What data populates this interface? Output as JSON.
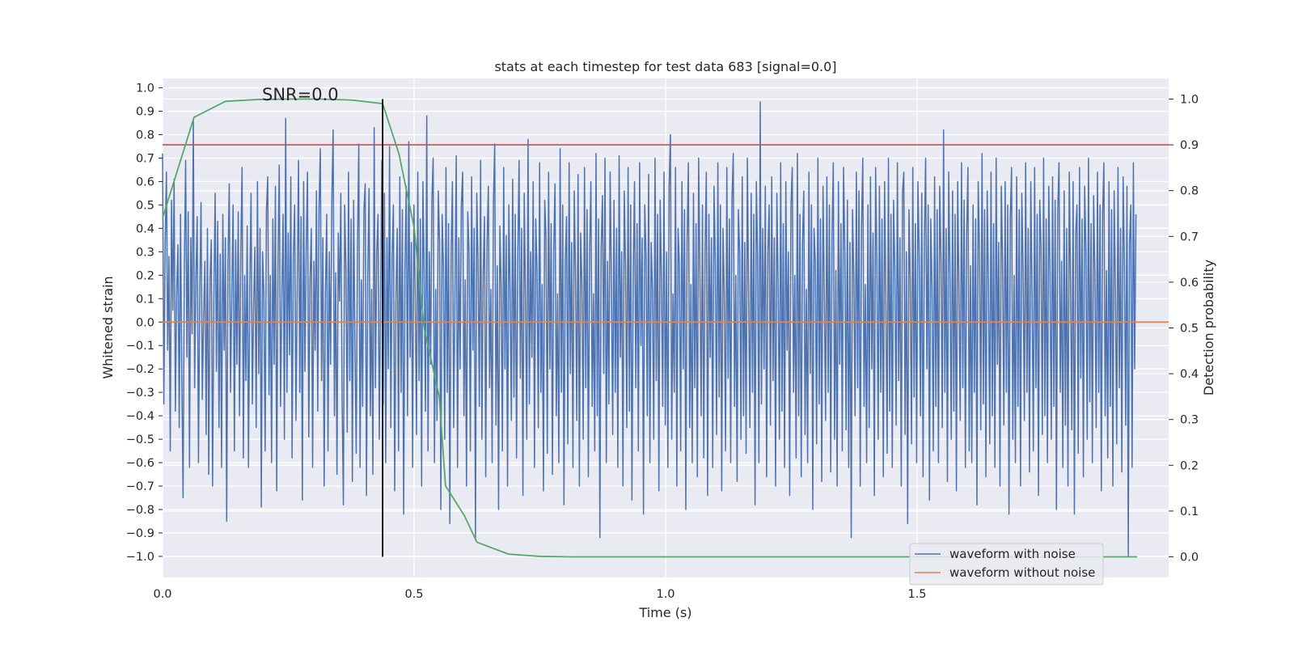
{
  "chart_data": {
    "type": "line",
    "title": "stats at each timestep for test data 683 [signal=0.0]",
    "xlabel": "Time (s)",
    "ylabel": "Whitened strain",
    "y2label": "Detection probability",
    "xlim": [
      0.0,
      2.0
    ],
    "ylim": [
      -1.09,
      1.04
    ],
    "y2lim": [
      -0.045,
      1.045
    ],
    "x_ticks": [
      0.0,
      0.5,
      1.0,
      1.5
    ],
    "x_tick_labels": [
      "0.0",
      "0.5",
      "1.0",
      "1.5"
    ],
    "y_ticks": [
      1.0,
      0.9,
      0.8,
      0.7,
      0.6,
      0.5,
      0.4,
      0.3,
      0.2,
      0.1,
      0.0,
      -0.1,
      -0.2,
      -0.3,
      -0.4,
      -0.5,
      -0.6,
      -0.7,
      -0.8,
      -0.9,
      -1.0
    ],
    "y_tick_labels": [
      "1.0",
      "0.9",
      "0.8",
      "0.7",
      "0.6",
      "0.5",
      "0.4",
      "0.3",
      "0.2",
      "0.1",
      "0.0",
      "−0.1",
      "−0.2",
      "−0.3",
      "−0.4",
      "−0.5",
      "−0.6",
      "−0.7",
      "−0.8",
      "−0.9",
      "−1.0"
    ],
    "y2_ticks": [
      1.0,
      0.9,
      0.8,
      0.7,
      0.6,
      0.5,
      0.4,
      0.3,
      0.2,
      0.1,
      0.0
    ],
    "y2_tick_labels": [
      "1.0",
      "0.9",
      "0.8",
      "0.7",
      "0.6",
      "0.5",
      "0.4",
      "0.3",
      "0.2",
      "0.1",
      "0.0"
    ],
    "grid": true,
    "legend_position": "lower-right",
    "annotation": "SNR=0.0",
    "series": [
      {
        "name": "waveform with noise",
        "axis": "left",
        "color": "#4c72b0",
        "x_start": 0.0,
        "x_end": 1.935,
        "values": [
          0.72,
          -0.35,
          0.33,
          0.64,
          -0.12,
          0.28,
          -0.55,
          0.52,
          0.05,
          0.61,
          -0.38,
          0.12,
          0.33,
          -0.45,
          0.46,
          -0.22,
          -0.75,
          0.24,
          0.69,
          -0.15,
          0.47,
          -0.62,
          0.36,
          -0.05,
          0.86,
          -0.28,
          0.18,
          0.45,
          -0.6,
          0.12,
          0.51,
          -0.33,
          0.02,
          0.26,
          -0.48,
          0.4,
          -0.65,
          0.18,
          0.35,
          -0.7,
          0.09,
          0.55,
          -0.21,
          0.43,
          -0.45,
          0.29,
          -0.62,
          0.46,
          -0.12,
          0.36,
          -0.85,
          0.25,
          0.59,
          -0.3,
          0.12,
          0.5,
          -0.55,
          0.35,
          -0.18,
          0.47,
          -0.4,
          0.3,
          0.66,
          -0.58,
          0.2,
          -0.25,
          0.41,
          -0.62,
          0.14,
          0.55,
          -0.35,
          0.07,
          0.32,
          -0.45,
          0.6,
          -0.22,
          0.4,
          -0.79,
          0.3,
          0.12,
          -0.55,
          0.48,
          0.62,
          -0.31,
          0.2,
          -0.6,
          0.44,
          -0.18,
          0.58,
          -0.72,
          0.25,
          0.67,
          -0.36,
          0.1,
          0.46,
          -0.5,
          0.87,
          -0.3,
          0.38,
          -0.14,
          0.62,
          -0.58,
          0.28,
          0.5,
          -0.42,
          0.14,
          0.69,
          -0.3,
          0.45,
          -0.76,
          0.6,
          -0.21,
          0.31,
          0.64,
          -0.49,
          0.18,
          0.4,
          -0.62,
          0.26,
          -0.12,
          0.56,
          -0.38,
          0.48,
          0.74,
          -0.25,
          0.36,
          -0.7,
          0.12,
          0.46,
          -0.55,
          0.3,
          -0.18,
          0.52,
          0.82,
          -0.4,
          0.21,
          -0.65,
          0.38,
          0.09,
          0.55,
          -0.33,
          -0.78,
          0.5,
          0.22,
          -0.47,
          0.64,
          -0.25,
          0.44,
          -0.68,
          0.52,
          -0.1,
          -0.56,
          0.33,
          0.76,
          -0.62,
          0.18,
          -0.36,
          0.48,
          0.59,
          -0.74,
          0.2,
          0.57,
          -0.4,
          0.14,
          -0.65,
          0.83,
          -0.28,
          0.3,
          0.46,
          -0.5,
          0.12,
          0.69,
          -0.35,
          0.55,
          -0.6,
          0.36,
          -0.2,
          0.75,
          -0.45,
          0.28,
          0.5,
          -0.72,
          0.1,
          0.4,
          -0.55,
          0.62,
          -0.3,
          0.48,
          -0.82,
          0.22,
          0.58,
          -0.4,
          0.77,
          -0.15,
          0.34,
          -0.62,
          0.5,
          0.12,
          -0.48,
          0.64,
          -0.25,
          0.44,
          -0.7,
          0.6,
          0.2,
          -0.38,
          0.88,
          -0.55,
          0.3,
          -0.18,
          0.52,
          0.7,
          -0.6,
          0.14,
          -0.42,
          0.56,
          0.34,
          -0.8,
          0.46,
          0.24,
          -0.5,
          0.66,
          -0.3,
          0.42,
          -0.86,
          0.28,
          0.6,
          -0.45,
          0.12,
          0.71,
          -0.62,
          0.36,
          -0.2,
          0.5,
          0.64,
          -0.4,
          0.18,
          -0.7,
          0.47,
          0.3,
          -0.55,
          0.62,
          -0.12,
          0.4,
          -0.93,
          0.55,
          0.26,
          -0.36,
          0.69,
          -0.5,
          0.2,
          0.45,
          -0.66,
          0.33,
          0.58,
          -0.28,
          0.14,
          -0.6,
          0.52,
          0.76,
          -0.44,
          0.24,
          -0.8,
          0.41,
          0.16,
          -0.55,
          0.66,
          -0.2,
          0.37,
          -0.7,
          0.5,
          0.12,
          -0.42,
          0.61,
          -0.32,
          0.46,
          -0.58,
          0.28,
          0.69,
          -0.24,
          0.4,
          -0.74,
          0.55,
          0.1,
          -0.5,
          0.78,
          -0.35,
          0.3,
          -0.15,
          0.6,
          -0.62,
          0.44,
          0.22,
          -0.45,
          0.68,
          -0.3,
          0.16,
          -0.72,
          0.52,
          0.36,
          -0.56,
          0.64,
          -0.2,
          0.42,
          -0.65,
          0.3,
          0.59,
          -0.4,
          0.12,
          -0.6,
          0.74,
          -0.3,
          0.5,
          -0.78,
          0.26,
          0.45,
          -0.52,
          0.68,
          -0.22,
          0.34,
          -0.62,
          0.56,
          0.2,
          -0.42,
          0.63,
          -0.7,
          0.38,
          0.16,
          -0.5,
          0.66,
          -0.28,
          0.48,
          -0.66,
          0.3,
          0.6,
          -0.36,
          0.12,
          -0.55,
          0.72,
          -0.4,
          0.44,
          -0.92,
          0.32,
          0.54,
          -0.22,
          0.7,
          -0.6,
          0.26,
          -0.35,
          0.64,
          0.18,
          -0.48,
          0.52,
          -0.3,
          0.4,
          -0.62,
          0.71,
          -0.15,
          0.3,
          -0.7,
          0.56,
          0.24,
          -0.45,
          0.66,
          -0.38,
          0.5,
          -0.76,
          0.2,
          0.6,
          -0.28,
          0.42,
          -0.55,
          0.68,
          -0.1,
          0.36,
          -0.82,
          0.5,
          0.28,
          -0.4,
          0.63,
          -0.6,
          0.34,
          0.14,
          -0.5,
          0.7,
          -0.25,
          0.46,
          -0.72,
          0.52,
          0.18,
          -0.36,
          0.64,
          -0.44,
          0.3,
          -0.62,
          0.58,
          0.8,
          -0.5,
          0.12,
          -0.3,
          0.66,
          -0.7,
          0.4,
          0.24,
          -0.55,
          0.6,
          -0.2,
          0.48,
          -0.8,
          0.34,
          0.68,
          -0.45,
          0.16,
          -0.6,
          0.55,
          -0.28,
          0.42,
          -0.66,
          0.7,
          0.2,
          -0.4,
          0.5,
          -0.58,
          0.3,
          0.64,
          -0.74,
          0.46,
          -0.15,
          0.36,
          -0.62,
          0.58,
          0.26,
          -0.48,
          0.68,
          -0.32,
          0.5,
          -0.72,
          0.4,
          0.12,
          -0.55,
          0.66,
          -0.24,
          0.44,
          -0.6,
          0.52,
          0.72,
          -0.36,
          0.2,
          -0.68,
          0.48,
          0.3,
          -0.5,
          0.62,
          -0.4,
          0.34,
          -0.56,
          0.7,
          0.1,
          -0.45,
          0.55,
          -0.3,
          0.46,
          -0.78,
          0.6,
          0.28,
          -0.6,
          0.94,
          -0.35,
          0.4,
          -0.2,
          0.58,
          -0.66,
          0.3,
          0.5,
          -0.44,
          0.62,
          -0.25,
          0.36,
          -0.7,
          0.55,
          0.16,
          -0.5,
          0.68,
          -0.38,
          0.42,
          -0.62,
          0.6,
          -0.12,
          0.3,
          -0.74,
          0.5,
          0.66,
          -0.3,
          0.2,
          -0.58,
          0.72,
          -0.4,
          0.46,
          -0.66,
          0.34,
          0.56,
          -0.48,
          0.14,
          -0.6,
          0.64,
          -0.22,
          0.5,
          -0.8,
          0.4,
          0.26,
          -0.52,
          0.7,
          -0.35,
          0.44,
          -0.68,
          0.58,
          0.12,
          -0.42,
          0.62,
          -0.3,
          0.5,
          -0.64,
          0.36,
          0.68,
          -0.5,
          0.22,
          -0.7,
          0.6,
          -0.18,
          0.42,
          -0.55,
          0.66,
          0.3,
          -0.46,
          0.52,
          -0.62,
          0.34,
          -0.92,
          0.48,
          0.2,
          -0.4,
          0.64,
          -0.28,
          0.56,
          -0.7,
          0.4,
          0.7,
          -0.36,
          0.16,
          -0.6,
          0.5,
          -0.45,
          0.62,
          -0.2,
          0.38,
          -0.74,
          0.66,
          0.26,
          -0.5,
          0.58,
          -0.3,
          0.44,
          -0.66,
          0.6,
          0.1,
          -0.56,
          0.7,
          -0.38,
          0.46,
          -0.62,
          0.52,
          0.22,
          -0.44,
          0.68,
          -0.25,
          0.36,
          -0.7,
          0.56,
          0.64,
          -0.48,
          0.3,
          -0.86,
          0.48,
          0.18,
          -0.52,
          0.66,
          -0.32,
          0.42,
          -0.6,
          0.6,
          0.28,
          -0.4,
          0.55,
          -0.66,
          0.34,
          0.7,
          -0.2,
          0.5,
          -0.76,
          0.44,
          0.14,
          -0.55,
          0.62,
          -0.36,
          0.48,
          -0.6,
          0.58,
          0.26,
          -0.45,
          0.82,
          -0.3,
          0.4,
          -0.68,
          0.64,
          0.2,
          -0.5,
          0.56,
          -0.38,
          0.46,
          -0.72,
          0.6,
          0.12,
          -0.42,
          0.68,
          -0.28,
          0.52,
          -0.62,
          0.38,
          0.66,
          -0.55,
          0.24,
          -0.6,
          0.5,
          -0.3,
          0.44,
          -0.78,
          0.6,
          0.3,
          -0.46,
          0.72,
          -0.35,
          0.48,
          -0.66,
          0.56,
          0.16,
          -0.52,
          0.64,
          -0.4,
          0.42,
          -0.62,
          0.7,
          -0.18,
          0.34,
          -0.7,
          0.58,
          0.26,
          -0.44,
          0.6,
          -0.3,
          0.5,
          -0.82,
          0.44,
          0.66,
          -0.5,
          0.2,
          -0.6,
          0.62,
          -0.36,
          0.48,
          -0.7,
          0.55,
          0.22,
          -0.42,
          0.68,
          -0.3,
          0.4,
          -0.64,
          0.6,
          0.12,
          -0.55,
          0.66,
          -0.28,
          0.46,
          -0.74,
          0.52,
          0.32,
          -0.48,
          0.7,
          -0.4,
          0.44,
          -0.6,
          0.58,
          0.2,
          -0.5,
          0.62,
          -0.36,
          0.52,
          -0.8,
          0.48,
          0.68,
          -0.3,
          0.26,
          -0.62,
          0.56,
          -0.44,
          0.4,
          -0.7,
          0.64,
          0.16,
          -0.46,
          0.6,
          -0.82,
          0.38,
          0.5,
          -0.56,
          0.66,
          -0.24,
          0.44,
          -0.66,
          0.58,
          0.3,
          -0.5,
          0.7,
          -0.34,
          0.42,
          -0.6,
          0.54,
          0.2,
          -0.45,
          0.64,
          -0.3,
          0.5,
          -0.72,
          0.46,
          0.68,
          -0.4,
          0.22,
          -0.58,
          0.6,
          -0.36,
          0.48,
          -0.7,
          0.56,
          0.14,
          -0.52,
          0.66,
          -0.28,
          0.4,
          -0.64,
          0.62,
          0.26,
          -0.44,
          0.58,
          -1.0,
          0.34,
          0.5,
          -0.62,
          0.68,
          -0.2,
          0.46
        ]
      },
      {
        "name": "waveform without noise",
        "axis": "left",
        "color": "#dd8452",
        "x": [
          0.0,
          2.0
        ],
        "y": [
          0.0,
          0.0
        ]
      },
      {
        "axis": "right",
        "color": "#55a868",
        "x": [
          0.0,
          0.0625,
          0.125,
          0.1875,
          0.25,
          0.3125,
          0.375,
          0.4375,
          0.47,
          0.5,
          0.52,
          0.55,
          0.5625,
          0.6,
          0.625,
          0.6875,
          0.75,
          0.8125,
          1.0,
          1.25,
          1.5,
          1.75,
          1.9375
        ],
        "y": [
          0.74,
          0.96,
          0.995,
          0.999,
          1.0,
          1.0,
          0.998,
          0.99,
          0.88,
          0.72,
          0.5,
          0.35,
          0.155,
          0.09,
          0.032,
          0.006,
          0.001,
          0.0,
          0.0,
          0.0,
          0.0,
          0.0,
          0.0
        ]
      }
    ],
    "threshold_line": {
      "axis": "right",
      "value": 0.9,
      "color": "#c44e52"
    },
    "marker_line": {
      "x": 0.4375,
      "axis": "right",
      "from": 0.0,
      "to": 1.0,
      "color": "#000000"
    }
  }
}
